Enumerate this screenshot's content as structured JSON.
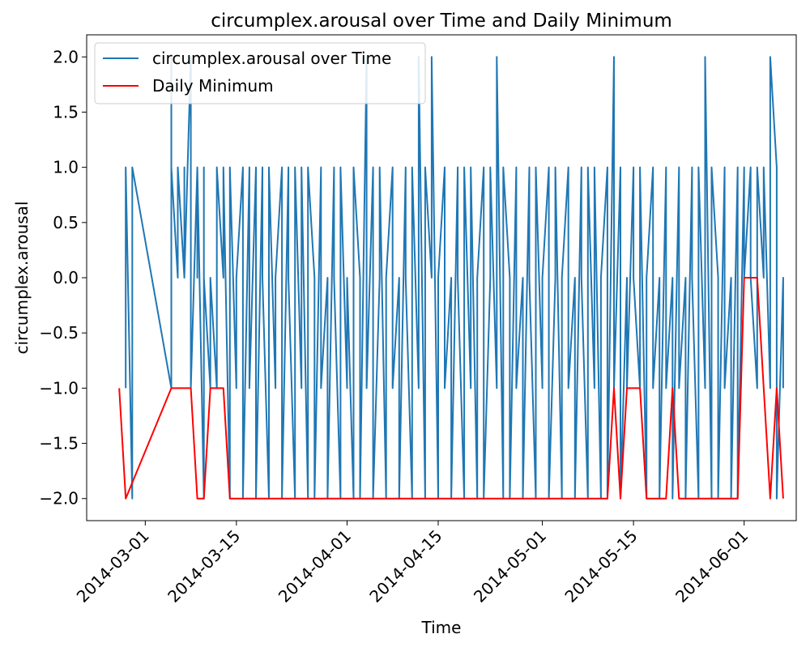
{
  "chart_data": {
    "type": "line",
    "title": "circumplex.arousal over Time and Daily Minimum",
    "xlabel": "Time",
    "ylabel": "circumplex.arousal",
    "x_range": [
      "2014-02-20",
      "2014-06-09"
    ],
    "ylim": [
      -2.2,
      2.2
    ],
    "x_ticks": [
      "2014-03-01",
      "2014-03-15",
      "2014-04-01",
      "2014-04-15",
      "2014-05-01",
      "2014-05-15",
      "2014-06-01"
    ],
    "y_ticks": [
      2.0,
      1.5,
      1.0,
      0.5,
      0.0,
      -0.5,
      -1.0,
      -1.5,
      -2.0
    ],
    "y_tick_labels": [
      "2.0",
      "1.5",
      "1.0",
      "0.5",
      "0.0",
      "−0.5",
      "−1.0",
      "−1.5",
      "−2.0"
    ],
    "grid": false,
    "legend_position": "top-left",
    "series": [
      {
        "name": "circumplex.arousal over Time",
        "color": "#1f77b4",
        "points": [
          [
            "2014-02-26",
            -1
          ],
          [
            "2014-02-26",
            1
          ],
          [
            "2014-02-27",
            -2
          ],
          [
            "2014-02-27",
            1
          ],
          [
            "2014-03-05",
            -1
          ],
          [
            "2014-03-05",
            2
          ],
          [
            "2014-03-05",
            1
          ],
          [
            "2014-03-06",
            0
          ],
          [
            "2014-03-06",
            1
          ],
          [
            "2014-03-07",
            0
          ],
          [
            "2014-03-07",
            1
          ],
          [
            "2014-03-07",
            0
          ],
          [
            "2014-03-08",
            2
          ],
          [
            "2014-03-08",
            0
          ],
          [
            "2014-03-08",
            1
          ],
          [
            "2014-03-08",
            -1
          ],
          [
            "2014-03-09",
            1
          ],
          [
            "2014-03-09",
            0
          ],
          [
            "2014-03-09",
            1
          ],
          [
            "2014-03-10",
            -2
          ],
          [
            "2014-03-10",
            1
          ],
          [
            "2014-03-10",
            0
          ],
          [
            "2014-03-11",
            -1
          ],
          [
            "2014-03-11",
            0
          ],
          [
            "2014-03-12",
            -1
          ],
          [
            "2014-03-12",
            1
          ],
          [
            "2014-03-13",
            0
          ],
          [
            "2014-03-13",
            1
          ],
          [
            "2014-03-14",
            -2
          ],
          [
            "2014-03-14",
            1
          ],
          [
            "2014-03-15",
            -1
          ],
          [
            "2014-03-15",
            0
          ],
          [
            "2014-03-16",
            1
          ],
          [
            "2014-03-16",
            -2
          ],
          [
            "2014-03-17",
            1
          ],
          [
            "2014-03-17",
            -1
          ],
          [
            "2014-03-18",
            1
          ],
          [
            "2014-03-18",
            -2
          ],
          [
            "2014-03-19",
            1
          ],
          [
            "2014-03-19",
            0
          ],
          [
            "2014-03-20",
            -2
          ],
          [
            "2014-03-20",
            1
          ],
          [
            "2014-03-21",
            -1
          ],
          [
            "2014-03-21",
            0
          ],
          [
            "2014-03-22",
            1
          ],
          [
            "2014-03-22",
            -2
          ],
          [
            "2014-03-23",
            1
          ],
          [
            "2014-03-23",
            0
          ],
          [
            "2014-03-24",
            -2
          ],
          [
            "2014-03-24",
            1
          ],
          [
            "2014-03-25",
            -1
          ],
          [
            "2014-03-25",
            1
          ],
          [
            "2014-03-26",
            -2
          ],
          [
            "2014-03-26",
            1
          ],
          [
            "2014-03-27",
            0
          ],
          [
            "2014-03-27",
            -2
          ],
          [
            "2014-03-28",
            1
          ],
          [
            "2014-03-28",
            -1
          ],
          [
            "2014-03-29",
            0
          ],
          [
            "2014-03-29",
            -2
          ],
          [
            "2014-03-30",
            1
          ],
          [
            "2014-03-30",
            0
          ],
          [
            "2014-03-31",
            -2
          ],
          [
            "2014-03-31",
            1
          ],
          [
            "2014-04-01",
            -1
          ],
          [
            "2014-04-01",
            0
          ],
          [
            "2014-04-02",
            -2
          ],
          [
            "2014-04-02",
            1
          ],
          [
            "2014-04-03",
            0
          ],
          [
            "2014-04-03",
            -2
          ],
          [
            "2014-04-04",
            2
          ],
          [
            "2014-04-04",
            -1
          ],
          [
            "2014-04-05",
            1
          ],
          [
            "2014-04-05",
            -2
          ],
          [
            "2014-04-06",
            0
          ],
          [
            "2014-04-06",
            1
          ],
          [
            "2014-04-07",
            -2
          ],
          [
            "2014-04-07",
            0
          ],
          [
            "2014-04-08",
            1
          ],
          [
            "2014-04-08",
            -1
          ],
          [
            "2014-04-09",
            0
          ],
          [
            "2014-04-09",
            -2
          ],
          [
            "2014-04-10",
            1
          ],
          [
            "2014-04-10",
            0
          ],
          [
            "2014-04-11",
            -2
          ],
          [
            "2014-04-11",
            1
          ],
          [
            "2014-04-12",
            -1
          ],
          [
            "2014-04-12",
            2
          ],
          [
            "2014-04-13",
            -2
          ],
          [
            "2014-04-13",
            1
          ],
          [
            "2014-04-14",
            0
          ],
          [
            "2014-04-14",
            2
          ],
          [
            "2014-04-15",
            -2
          ],
          [
            "2014-04-15",
            0
          ],
          [
            "2014-04-16",
            1
          ],
          [
            "2014-04-16",
            -1
          ],
          [
            "2014-04-17",
            0
          ],
          [
            "2014-04-17",
            -2
          ],
          [
            "2014-04-18",
            1
          ],
          [
            "2014-04-18",
            0
          ],
          [
            "2014-04-19",
            -2
          ],
          [
            "2014-04-19",
            1
          ],
          [
            "2014-04-20",
            -1
          ],
          [
            "2014-04-20",
            1
          ],
          [
            "2014-04-21",
            -2
          ],
          [
            "2014-04-21",
            0
          ],
          [
            "2014-04-22",
            1
          ],
          [
            "2014-04-22",
            -2
          ],
          [
            "2014-04-23",
            0
          ],
          [
            "2014-04-23",
            1
          ],
          [
            "2014-04-24",
            -1
          ],
          [
            "2014-04-24",
            2
          ],
          [
            "2014-04-25",
            -2
          ],
          [
            "2014-04-25",
            1
          ],
          [
            "2014-04-26",
            0
          ],
          [
            "2014-04-26",
            -2
          ],
          [
            "2014-04-27",
            1
          ],
          [
            "2014-04-27",
            -1
          ],
          [
            "2014-04-28",
            0
          ],
          [
            "2014-04-28",
            -2
          ],
          [
            "2014-04-29",
            1
          ],
          [
            "2014-04-29",
            0
          ],
          [
            "2014-04-30",
            -2
          ],
          [
            "2014-04-30",
            1
          ],
          [
            "2014-05-01",
            -1
          ],
          [
            "2014-05-01",
            0
          ],
          [
            "2014-05-02",
            1
          ],
          [
            "2014-05-02",
            -2
          ],
          [
            "2014-05-03",
            0
          ],
          [
            "2014-05-03",
            1
          ],
          [
            "2014-05-04",
            -2
          ],
          [
            "2014-05-04",
            0
          ],
          [
            "2014-05-05",
            1
          ],
          [
            "2014-05-05",
            -1
          ],
          [
            "2014-05-06",
            0
          ],
          [
            "2014-05-06",
            -2
          ],
          [
            "2014-05-07",
            1
          ],
          [
            "2014-05-07",
            0
          ],
          [
            "2014-05-08",
            -2
          ],
          [
            "2014-05-08",
            1
          ],
          [
            "2014-05-09",
            -1
          ],
          [
            "2014-05-09",
            1
          ],
          [
            "2014-05-10",
            -2
          ],
          [
            "2014-05-10",
            0
          ],
          [
            "2014-05-11",
            1
          ],
          [
            "2014-05-11",
            -2
          ],
          [
            "2014-05-12",
            2
          ],
          [
            "2014-05-12",
            -1
          ],
          [
            "2014-05-13",
            1
          ],
          [
            "2014-05-13",
            -2
          ],
          [
            "2014-05-14",
            0
          ],
          [
            "2014-05-14",
            -1
          ],
          [
            "2014-05-15",
            1
          ],
          [
            "2014-05-15",
            0
          ],
          [
            "2014-05-16",
            -1
          ],
          [
            "2014-05-16",
            1
          ],
          [
            "2014-05-17",
            -2
          ],
          [
            "2014-05-17",
            0
          ],
          [
            "2014-05-18",
            1
          ],
          [
            "2014-05-18",
            -1
          ],
          [
            "2014-05-19",
            0
          ],
          [
            "2014-05-19",
            -2
          ],
          [
            "2014-05-20",
            1
          ],
          [
            "2014-05-20",
            -1
          ],
          [
            "2014-05-21",
            0
          ],
          [
            "2014-05-21",
            -2
          ],
          [
            "2014-05-22",
            1
          ],
          [
            "2014-05-22",
            -1
          ],
          [
            "2014-05-23",
            0
          ],
          [
            "2014-05-23",
            -2
          ],
          [
            "2014-05-24",
            1
          ],
          [
            "2014-05-24",
            0
          ],
          [
            "2014-05-25",
            -2
          ],
          [
            "2014-05-25",
            1
          ],
          [
            "2014-05-26",
            -1
          ],
          [
            "2014-05-26",
            2
          ],
          [
            "2014-05-27",
            -2
          ],
          [
            "2014-05-27",
            1
          ],
          [
            "2014-05-28",
            0
          ],
          [
            "2014-05-28",
            -2
          ],
          [
            "2014-05-29",
            1
          ],
          [
            "2014-05-29",
            -1
          ],
          [
            "2014-05-30",
            0
          ],
          [
            "2014-05-30",
            -2
          ],
          [
            "2014-05-31",
            1
          ],
          [
            "2014-05-31",
            -2
          ],
          [
            "2014-06-01",
            1
          ],
          [
            "2014-06-01",
            0
          ],
          [
            "2014-06-02",
            1
          ],
          [
            "2014-06-02",
            0
          ],
          [
            "2014-06-03",
            -1
          ],
          [
            "2014-06-03",
            1
          ],
          [
            "2014-06-04",
            0
          ],
          [
            "2014-06-04",
            1
          ],
          [
            "2014-06-05",
            -1
          ],
          [
            "2014-06-05",
            2
          ],
          [
            "2014-06-06",
            1
          ],
          [
            "2014-06-06",
            -2
          ],
          [
            "2014-06-07",
            0
          ],
          [
            "2014-06-07",
            -1
          ]
        ]
      },
      {
        "name": "Daily Minimum",
        "color": "#ff0000",
        "points": [
          [
            "2014-02-25",
            -1
          ],
          [
            "2014-02-26",
            -2
          ],
          [
            "2014-03-05",
            -1
          ],
          [
            "2014-03-08",
            -1
          ],
          [
            "2014-03-09",
            -2
          ],
          [
            "2014-03-10",
            -2
          ],
          [
            "2014-03-11",
            -1
          ],
          [
            "2014-03-13",
            -1
          ],
          [
            "2014-03-14",
            -2
          ],
          [
            "2014-05-11",
            -2
          ],
          [
            "2014-05-12",
            -1
          ],
          [
            "2014-05-13",
            -2
          ],
          [
            "2014-05-14",
            -1
          ],
          [
            "2014-05-16",
            -1
          ],
          [
            "2014-05-17",
            -2
          ],
          [
            "2014-05-20",
            -2
          ],
          [
            "2014-05-21",
            -1
          ],
          [
            "2014-05-22",
            -2
          ],
          [
            "2014-05-31",
            -2
          ],
          [
            "2014-06-01",
            0
          ],
          [
            "2014-06-03",
            0
          ],
          [
            "2014-06-05",
            -2
          ],
          [
            "2014-06-06",
            -1
          ],
          [
            "2014-06-07",
            -2
          ]
        ]
      }
    ]
  }
}
